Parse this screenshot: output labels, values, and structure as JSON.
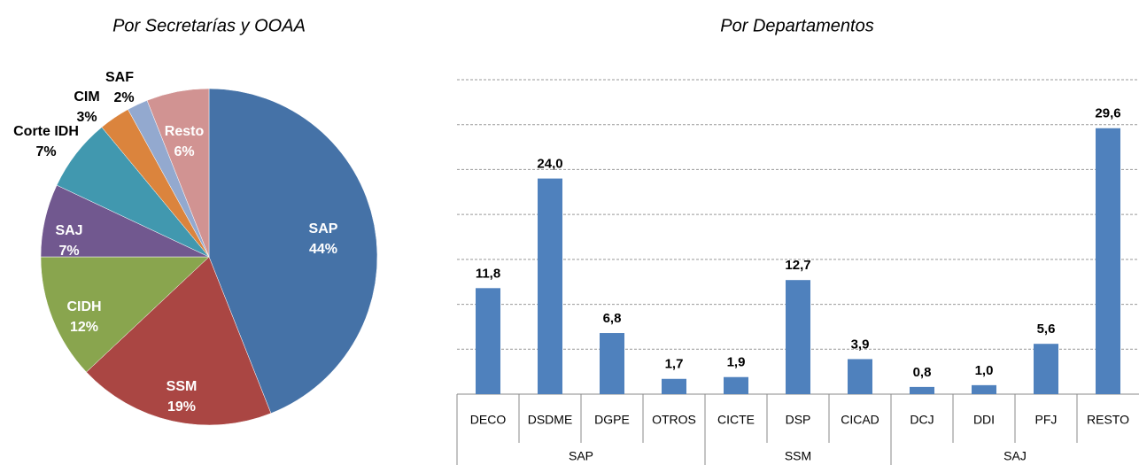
{
  "chart_data": [
    {
      "type": "pie",
      "title": "Por Secretarías y OOAA",
      "categories": [
        "SAP",
        "SSM",
        "CIDH",
        "SAJ",
        "Corte IDH",
        "CIM",
        "SAF",
        "Resto"
      ],
      "values": [
        44,
        19,
        12,
        7,
        7,
        3,
        2,
        6
      ],
      "value_labels": [
        "44%",
        "19%",
        "12%",
        "7%",
        "7%",
        "3%",
        "2%",
        "6%"
      ],
      "colors": [
        "#4572a7",
        "#aa4643",
        "#89a54e",
        "#71588f",
        "#4198af",
        "#db843d",
        "#93a9cf",
        "#d19392"
      ]
    },
    {
      "type": "bar",
      "title": "Por Departamentos",
      "categories": [
        "DECO",
        "DSDME",
        "DGPE",
        "OTROS",
        "CICTE",
        "DSP",
        "CICAD",
        "DCJ",
        "DDI",
        "PFJ",
        "RESTO"
      ],
      "groups": [
        {
          "name": "SAP",
          "span": 4
        },
        {
          "name": "SSM",
          "span": 3
        },
        {
          "name": "SAJ",
          "span": 4
        }
      ],
      "values": [
        11.8,
        24.0,
        6.8,
        1.7,
        1.9,
        12.7,
        3.9,
        0.8,
        1.0,
        5.6,
        29.6
      ],
      "value_labels": [
        "11,8",
        "24,0",
        "6,8",
        "1,7",
        "1,9",
        "12,7",
        "3,9",
        "0,8",
        "1,0",
        "5,6",
        "29,6"
      ],
      "color": "#4f81bd",
      "ylim": [
        0,
        35
      ],
      "yticks": [
        0,
        5,
        10,
        15,
        20,
        25,
        30,
        35
      ],
      "grid": true
    }
  ]
}
